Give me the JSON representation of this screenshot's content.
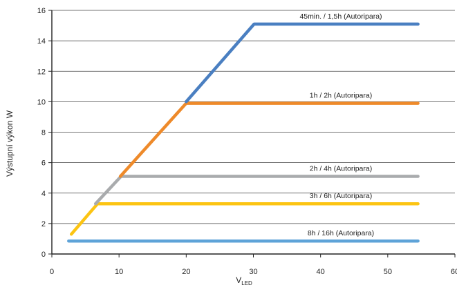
{
  "chart_data": {
    "type": "line",
    "ylabel": "Výstupní výkon W",
    "xlabel_main": "V",
    "xlabel_sub": "LED",
    "xlim": [
      0,
      60
    ],
    "ylim": [
      0,
      16
    ],
    "x_ticks": [
      0,
      10,
      20,
      30,
      40,
      50,
      60
    ],
    "y_ticks": [
      0,
      2,
      4,
      6,
      8,
      10,
      12,
      14,
      16
    ],
    "grid": "horizontal",
    "series": [
      {
        "name": "45min. / 1,5h (Autoripara)",
        "color": "#4a7fc1",
        "points": [
          [
            20,
            10
          ],
          [
            30.1,
            15.1
          ],
          [
            54.5,
            15.1
          ]
        ]
      },
      {
        "name": "1h / 2h (Autoripara)",
        "color": "#ee8a2a",
        "points": [
          [
            10.2,
            5.1
          ],
          [
            20,
            9.9
          ],
          [
            54.5,
            9.9
          ]
        ]
      },
      {
        "name": "2h / 4h (Autoripara)",
        "color": "#a9abad",
        "points": [
          [
            6.5,
            3.3
          ],
          [
            10.3,
            5.1
          ],
          [
            54.5,
            5.1
          ]
        ]
      },
      {
        "name": "3h / 6h (Autoripara)",
        "color": "#fcc412",
        "points": [
          [
            2.9,
            1.3
          ],
          [
            6.8,
            3.3
          ],
          [
            54.5,
            3.3
          ]
        ]
      },
      {
        "name": "8h / 16h (Autoripara)",
        "color": "#5ea3d8",
        "points": [
          [
            2.5,
            0.85
          ],
          [
            54.5,
            0.85
          ]
        ]
      }
    ]
  }
}
